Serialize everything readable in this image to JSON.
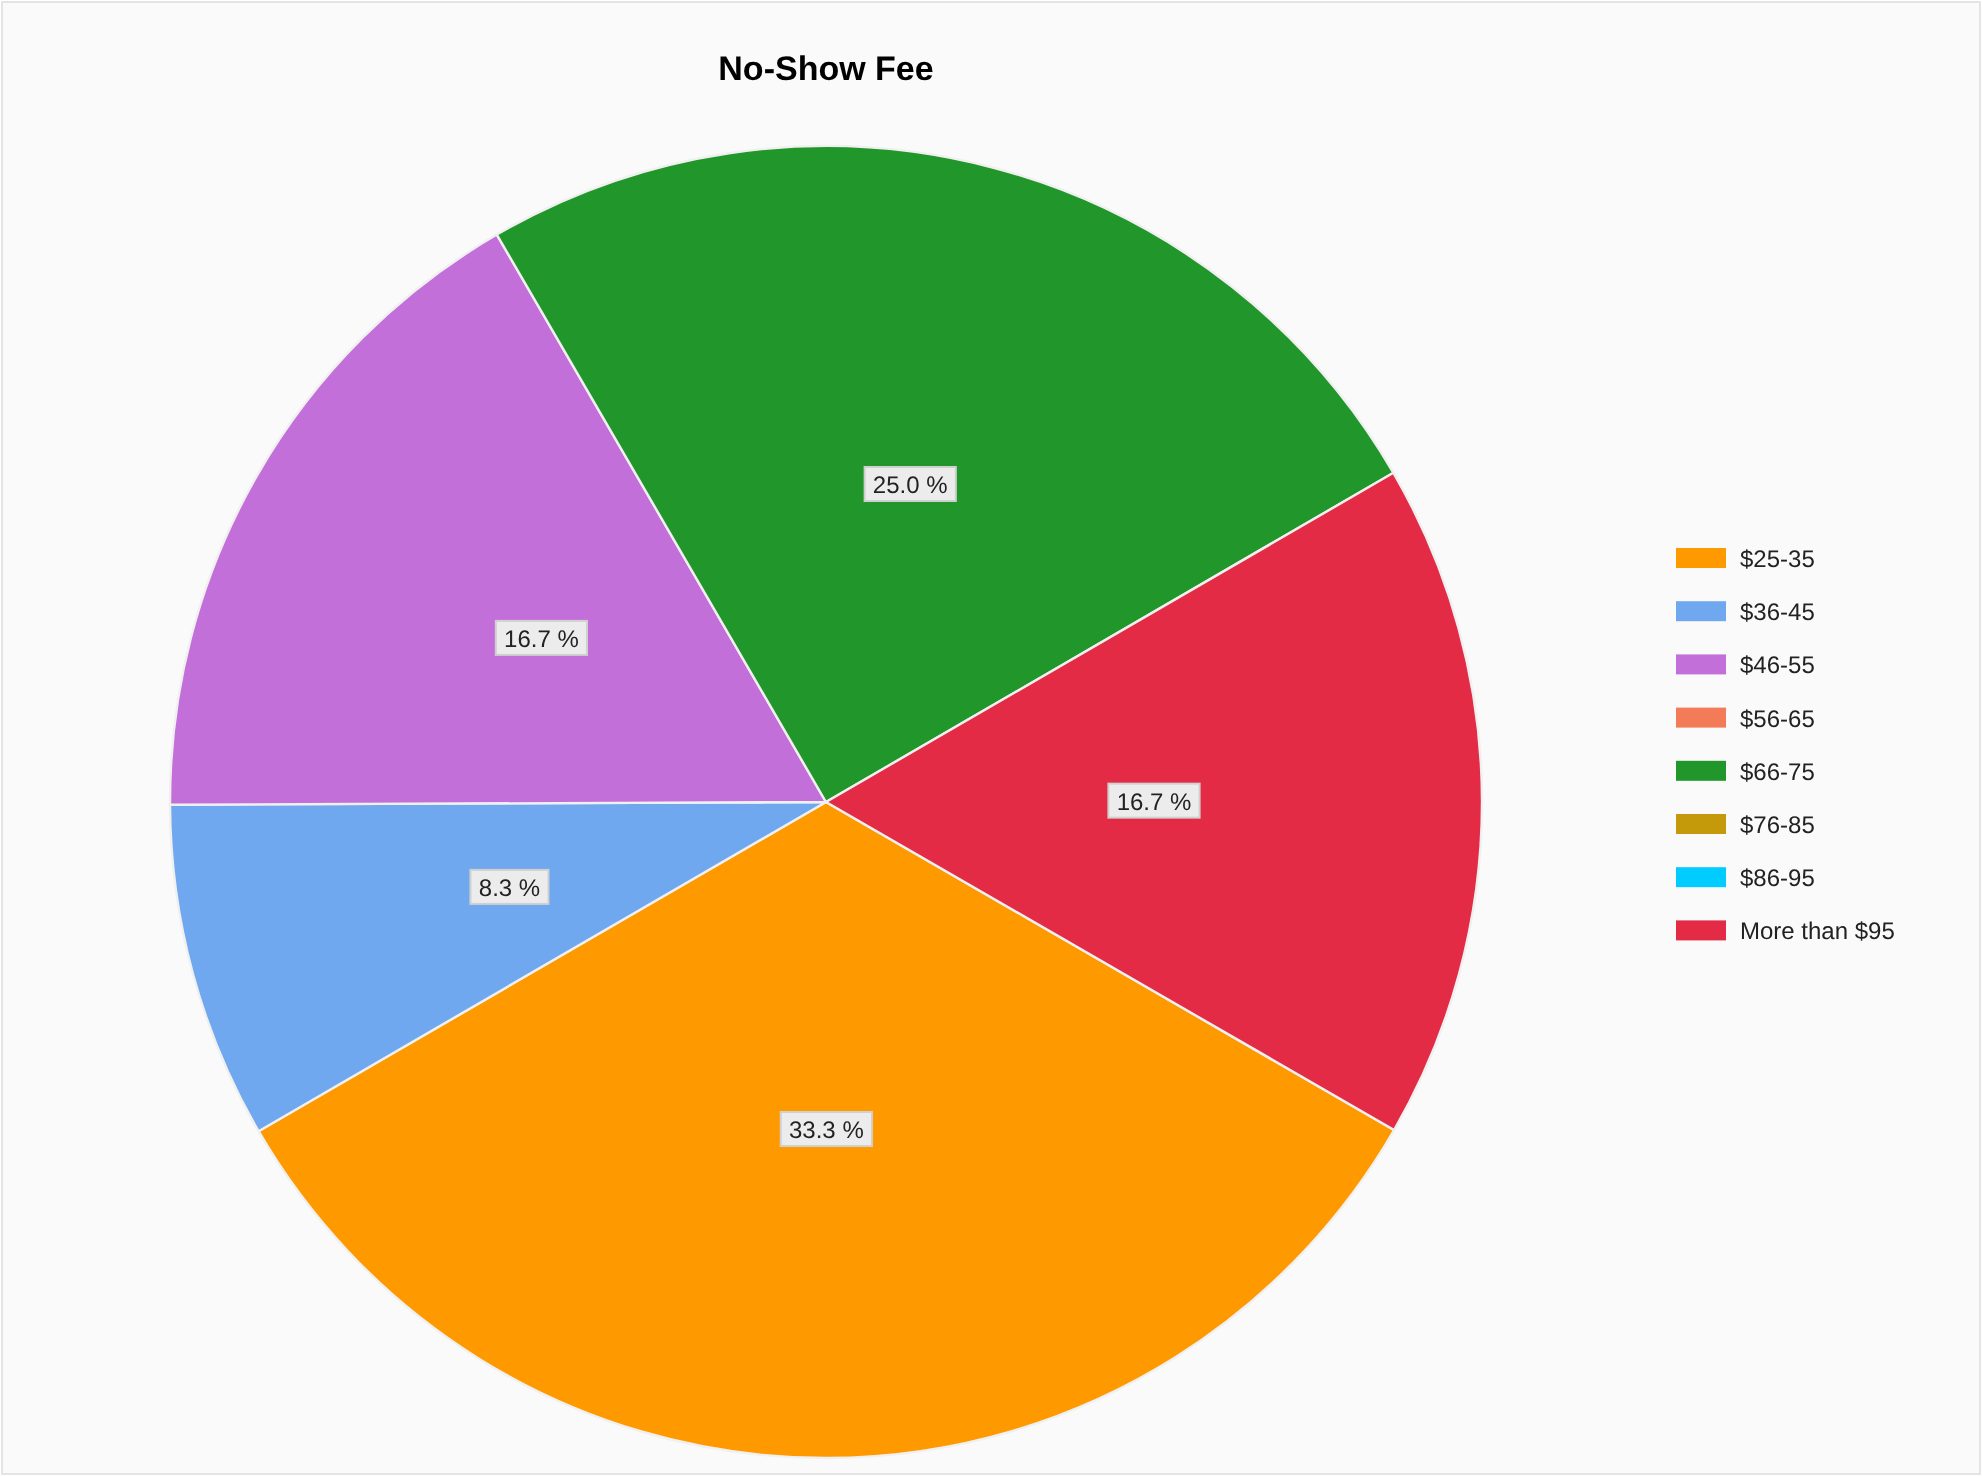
{
  "chart_data": {
    "type": "pie",
    "title": "No-Show Fee",
    "categories": [
      "$25-35",
      "$36-45",
      "$46-55",
      "$56-65",
      "$66-75",
      "$76-85",
      "$86-95",
      "More than $95"
    ],
    "values": [
      33.3,
      8.3,
      16.7,
      0,
      25.0,
      0,
      0,
      16.7
    ],
    "colors": [
      "#ff9900",
      "#6fa8ef",
      "#c36fd9",
      "#f37b57",
      "#21962a",
      "#c49a0b",
      "#00ccff",
      "#e32b45"
    ],
    "value_labels": [
      "33.3 %",
      "8.3 %",
      "16.7 %",
      null,
      "25.0 %",
      null,
      null,
      "16.7 %"
    ],
    "legend": "right"
  }
}
